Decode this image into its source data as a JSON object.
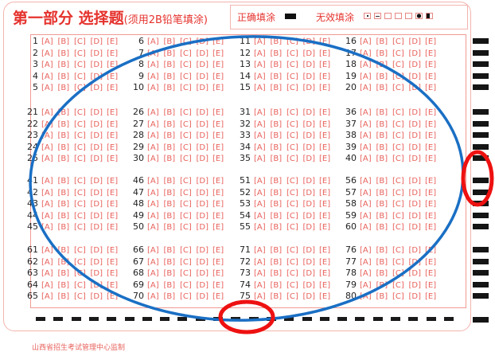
{
  "header": {
    "title": "第一部分 选择题",
    "subtitle": "(须用2B铅笔填涂)",
    "correct_label": "正确填涂",
    "invalid_label": "无效填涂",
    "invalid_marks": [
      "dot-icon",
      "dash-icon",
      "slash-icon",
      "check-icon",
      "cross-icon",
      "circle-icon",
      "half-fill-icon"
    ]
  },
  "answer_grid": {
    "question_count": 80,
    "options": [
      "A",
      "B",
      "C",
      "D",
      "E"
    ]
  },
  "footer": {
    "text": "山西省招生考试管理中心监制"
  },
  "annotations": {
    "blue_ellipse_color": "#1a6fc4",
    "red_circle_color": "#ee1111"
  },
  "colors": {
    "form_red": "#e5322d",
    "mark_black": "#151515"
  }
}
